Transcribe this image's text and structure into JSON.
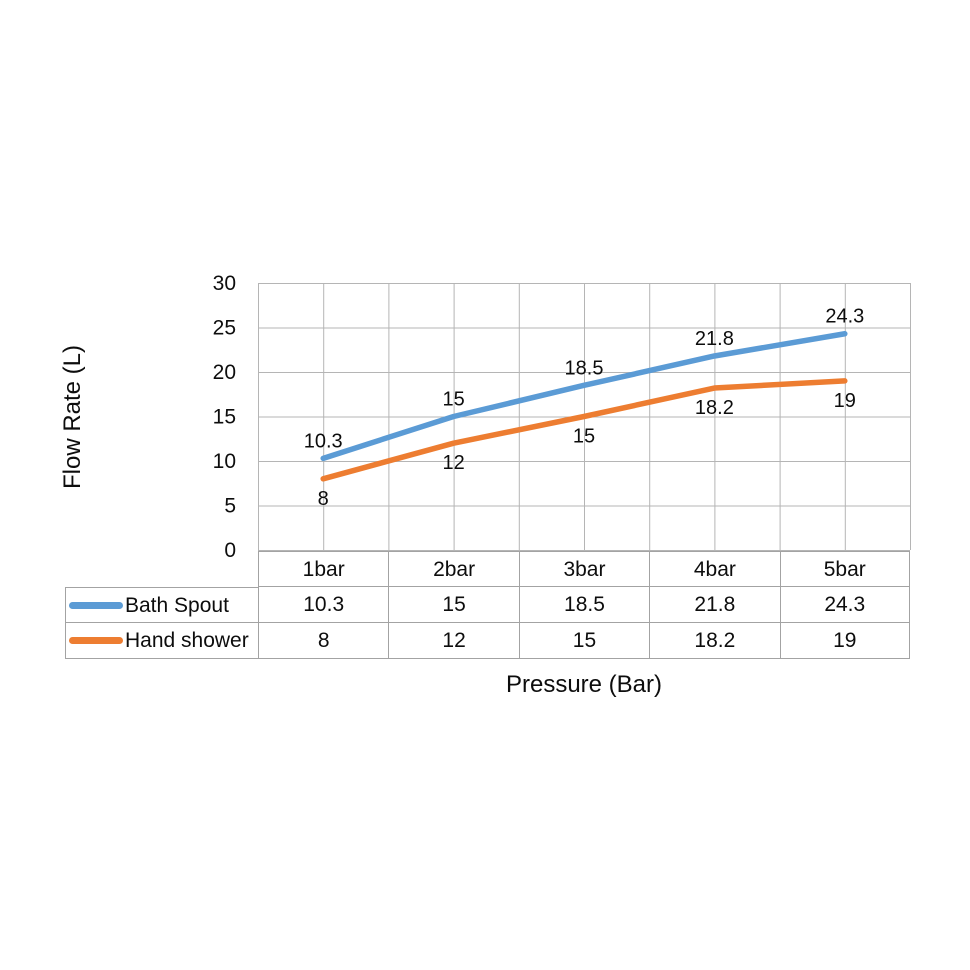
{
  "chart_data": {
    "type": "line",
    "title": "",
    "xlabel": "Pressure (Bar)",
    "ylabel": "Flow Rate (L)",
    "categories": [
      "1bar",
      "2bar",
      "3bar",
      "4bar",
      "5bar"
    ],
    "series": [
      {
        "name": "Bath Spout",
        "color": "#5B9BD5",
        "values": [
          10.3,
          15,
          18.5,
          21.8,
          24.3
        ],
        "label_position": "above"
      },
      {
        "name": "Hand shower",
        "color": "#ED7D31",
        "values": [
          8,
          12,
          15,
          18.2,
          19
        ],
        "label_position": "below"
      }
    ],
    "ylim": [
      0,
      30
    ],
    "yticks": [
      0,
      5,
      10,
      15,
      20,
      25,
      30
    ],
    "grid": true,
    "x_minor_gridlines": true,
    "legend_position": "table-left",
    "show_data_table": true,
    "colors": {
      "background": "#ffffff",
      "gridline": "#b5b5b5",
      "table_border": "#a3a3a3",
      "text": "#0d0d0d"
    }
  }
}
